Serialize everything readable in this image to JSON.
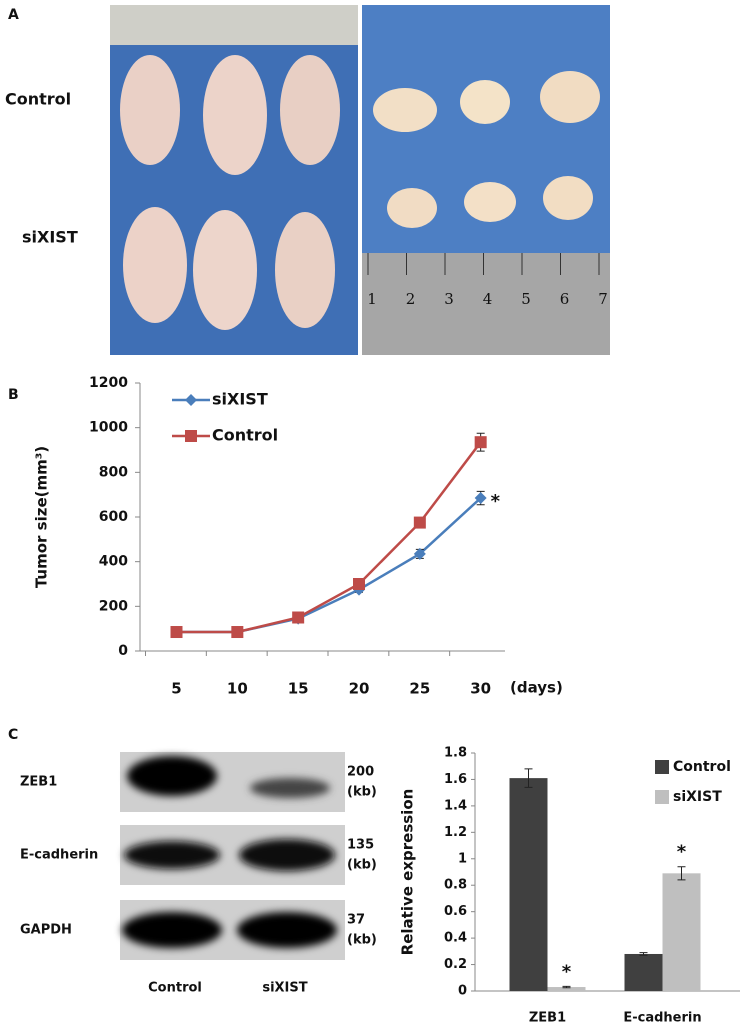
{
  "panels": [
    "A",
    "B",
    "C"
  ],
  "photo": {
    "group_labels": [
      "Control",
      "siXIST"
    ],
    "ruler_numbers": [
      "1",
      "2",
      "3",
      "4",
      "5",
      "6",
      "7"
    ]
  },
  "blot": {
    "proteins": [
      "ZEB1",
      "E-cadherin",
      "GAPDH"
    ],
    "sizes": [
      "200",
      "135",
      "37"
    ],
    "size_unit": "(kb)",
    "lanes": [
      "Control",
      "siXIST"
    ]
  },
  "chart_data": [
    {
      "type": "line",
      "y_label": "Tumor size(mm³)",
      "x_label": "(days)",
      "annotation": "*",
      "x": [
        5,
        10,
        15,
        20,
        25,
        30
      ],
      "xlim": [
        2,
        32
      ],
      "xticks": [
        5,
        10,
        15,
        20,
        25,
        30
      ],
      "ylim": [
        0,
        1200
      ],
      "yticks": [
        0,
        200,
        400,
        600,
        800,
        1000,
        1200
      ],
      "series": [
        {
          "name": "siXIST",
          "color": "#4a7ebb",
          "marker": "diamond",
          "values": [
            85,
            85,
            145,
            275,
            435,
            685
          ],
          "errors": [
            5,
            5,
            10,
            12,
            20,
            30
          ]
        },
        {
          "name": "Control",
          "color": "#be4b48",
          "marker": "square",
          "values": [
            85,
            85,
            150,
            300,
            575,
            935
          ],
          "errors": [
            5,
            5,
            10,
            12,
            15,
            40
          ]
        }
      ]
    },
    {
      "type": "bar",
      "y_label": "Relative expression",
      "annotation": "*",
      "categories": [
        "ZEB1",
        "E-cadherin"
      ],
      "ylim": [
        0,
        1.8
      ],
      "yticks": [
        0,
        0.2,
        0.4,
        0.6,
        0.8,
        1,
        1.2,
        1.4,
        1.6,
        1.8
      ],
      "series": [
        {
          "name": "Control",
          "color": "#404040",
          "values": [
            1.61,
            0.28
          ],
          "errors": [
            0.07,
            0.01
          ]
        },
        {
          "name": "siXIST",
          "color": "#bfbfbf",
          "values": [
            0.03,
            0.89
          ],
          "errors": [
            0.005,
            0.05
          ]
        }
      ]
    }
  ]
}
